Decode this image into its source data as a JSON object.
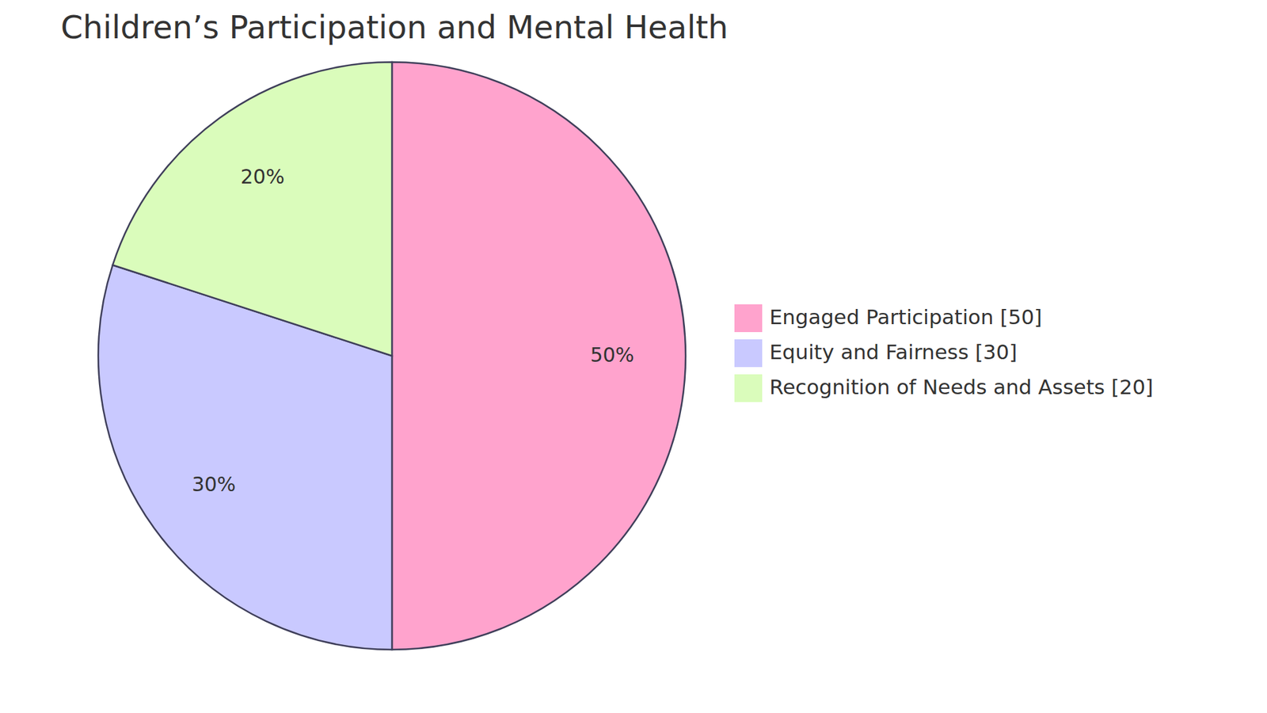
{
  "chart_data": {
    "type": "pie",
    "title": "Children’s Participation and Mental Health",
    "categories": [
      "Engaged Participation [50]",
      "Equity and Fairness [30]",
      "Recognition of Needs and Assets [20]"
    ],
    "values": [
      50,
      30,
      20
    ],
    "value_labels": [
      "50%",
      "30%",
      "20%"
    ],
    "colors": [
      "#ffa3cd",
      "#c9c9ff",
      "#dafcbb"
    ],
    "data_labels": true,
    "legend": "right"
  }
}
